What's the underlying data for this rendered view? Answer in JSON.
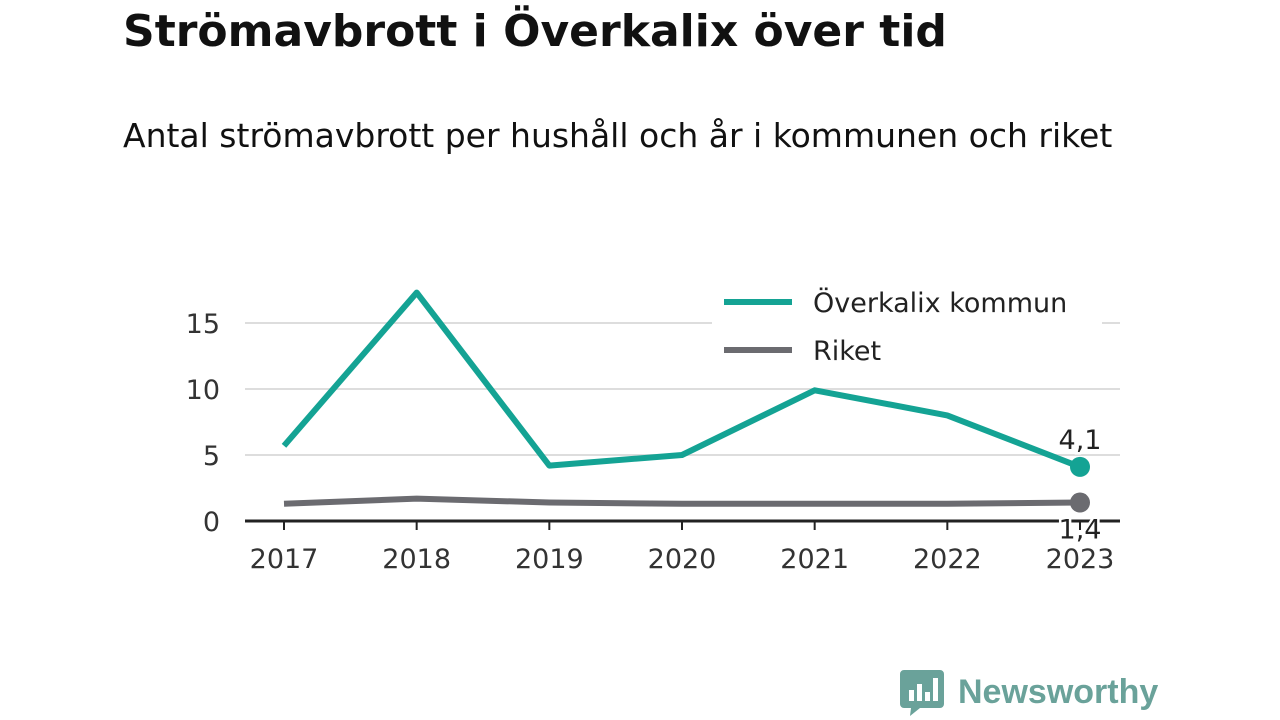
{
  "title": "Strömavbrott i Överkalix över tid",
  "subtitle": "Antal strömavbrott per hushåll och år i kommunen och riket",
  "brand": {
    "name": "Newsworthy",
    "color": "#6aa29a"
  },
  "chart_data": {
    "type": "line",
    "x": [
      "2017",
      "2018",
      "2019",
      "2020",
      "2021",
      "2022",
      "2023"
    ],
    "ylim": [
      0,
      17.5
    ],
    "yticks": [
      0,
      5,
      10,
      15
    ],
    "grid": true,
    "legend_position": "top-right",
    "series": [
      {
        "name": "Överkalix kommun",
        "color": "#14a394",
        "values": [
          5.7,
          17.3,
          4.2,
          5.0,
          9.9,
          8.0,
          4.1
        ],
        "end_label": "4,1"
      },
      {
        "name": "Riket",
        "color": "#6b6b70",
        "values": [
          1.3,
          1.7,
          1.4,
          1.3,
          1.3,
          1.3,
          1.4
        ],
        "end_label": "1,4"
      }
    ]
  }
}
